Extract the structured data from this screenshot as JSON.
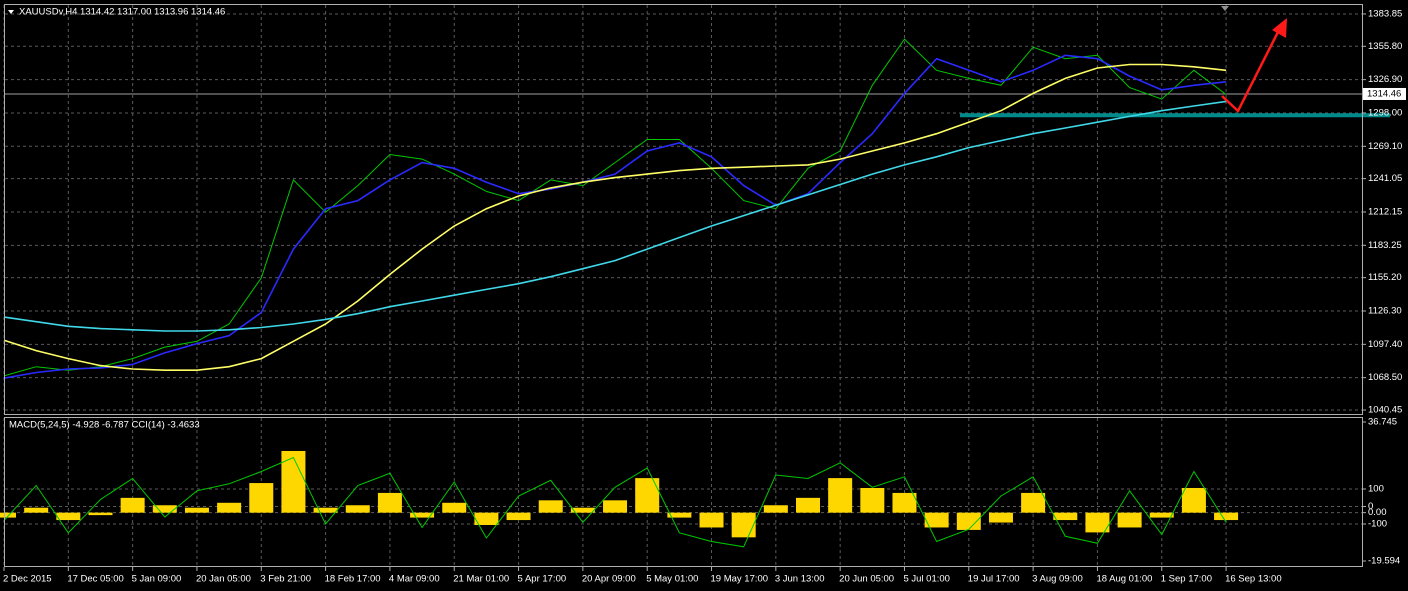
{
  "chart_data": [
    {
      "type": "line",
      "title": "XAUUSDv,H4  1314.42 1317.00 1313.96 1314.46",
      "categories": [
        "2 Dec 2015",
        null,
        "17 Dec 05:00",
        null,
        "5 Jan 09:00",
        null,
        "20 Jan 05:00",
        null,
        "3 Feb 21:00",
        null,
        "18 Feb 17:00",
        null,
        "4 Mar 09:00",
        null,
        "21 Mar 01:00",
        null,
        "5 Apr 17:00",
        null,
        "20 Apr 09:00",
        null,
        "5 May 01:00",
        null,
        "19 May 17:00",
        null,
        "3 Jun 13:00",
        null,
        "20 Jun 05:00",
        null,
        "5 Jul 01:00",
        null,
        "19 Jul 17:00",
        null,
        "3 Aug 09:00",
        null,
        "18 Aug 01:00",
        null,
        "1 Sep 17:00",
        null,
        "16 Sep 13:00"
      ],
      "series": [
        {
          "color": "#00c800",
          "values": [
            1070,
            1078,
            1075,
            1078,
            1085,
            1095,
            1100,
            1115,
            1155,
            1240,
            1212,
            1235,
            1262,
            1258,
            1245,
            1230,
            1222,
            1240,
            1235,
            1255,
            1275,
            1275,
            1250,
            1222,
            1215,
            1250,
            1265,
            1322,
            1362,
            1335,
            1328,
            1322,
            1355,
            1345,
            1348,
            1320,
            1310,
            1335,
            1314
          ]
        },
        {
          "color": "#2a2aff",
          "values": [
            1068,
            1073,
            1076,
            1077,
            1080,
            1090,
            1098,
            1105,
            1125,
            1180,
            1215,
            1222,
            1240,
            1255,
            1250,
            1238,
            1228,
            1232,
            1238,
            1245,
            1265,
            1272,
            1260,
            1235,
            1218,
            1228,
            1255,
            1280,
            1315,
            1345,
            1335,
            1325,
            1335,
            1348,
            1345,
            1330,
            1318,
            1322,
            1325
          ]
        },
        {
          "color": "#ffff66",
          "values": [
            1101,
            1092,
            1085,
            1079,
            1076,
            1075,
            1075,
            1078,
            1085,
            1100,
            1115,
            1135,
            1158,
            1180,
            1200,
            1215,
            1226,
            1233,
            1238,
            1242,
            1245,
            1248,
            1250,
            1251,
            1252,
            1253,
            1258,
            1265,
            1272,
            1280,
            1290,
            1300,
            1315,
            1328,
            1337,
            1340,
            1340,
            1338,
            1335
          ]
        },
        {
          "color": "#40d8e8",
          "values": [
            1121,
            1117,
            1113,
            1111,
            1110,
            1109,
            1109,
            1110,
            1112,
            1115,
            1119,
            1124,
            1130,
            1135,
            1140,
            1145,
            1150,
            1156,
            1163,
            1170,
            1180,
            1190,
            1200,
            1209,
            1218,
            1227,
            1236,
            1245,
            1253,
            1260,
            1268,
            1274,
            1280,
            1285,
            1290,
            1295,
            1300,
            1304,
            1308
          ]
        }
      ],
      "current_price": 1314.46,
      "support_level": 1296,
      "ylim": [
        1037,
        1391.6
      ],
      "yticks": [
        1383.85,
        {
          "value": 1355.8,
          "label": "1355.80"
        },
        {
          "value": 1326.9,
          "label": "1326.90"
        },
        {
          "value": 1298,
          "label": "1298.00"
        },
        {
          "value": 1269.1,
          "label": "1269.10"
        },
        1241.05,
        1212.15,
        1183.25,
        {
          "value": 1155.2,
          "label": "1155.20"
        },
        {
          "value": 1126.3,
          "label": "1126.30"
        },
        {
          "value": 1097.4,
          "label": "1097.40"
        },
        {
          "value": 1068.5,
          "label": "1068.50"
        },
        1040.45
      ],
      "grid": true
    },
    {
      "type": "bar",
      "title": "MACD(5,24,5) -4.928 -6.787 CCI(14) -3.4633",
      "series": [
        {
          "color": "#ffd700",
          "values": [
            -2,
            2,
            -3,
            -1,
            6,
            3,
            2,
            4,
            12,
            25,
            2,
            3,
            8,
            -2,
            4,
            -5,
            -3,
            5,
            2,
            5,
            14,
            -2,
            -6,
            -10,
            3,
            6,
            14,
            10,
            8,
            -6,
            -7,
            -4,
            8,
            -3,
            -8,
            -6,
            -2,
            10,
            -3
          ]
        },
        {
          "color": "#00c800",
          "axis": "y2",
          "values": [
            -80,
            120,
            -150,
            40,
            160,
            -60,
            90,
            130,
            200,
            280,
            -100,
            120,
            190,
            -120,
            140,
            -180,
            60,
            150,
            -90,
            110,
            220,
            -150,
            -200,
            -230,
            180,
            160,
            250,
            110,
            170,
            -200,
            -130,
            60,
            170,
            -170,
            -210,
            90,
            -160,
            200,
            -90
          ]
        }
      ],
      "ylim": [
        -19.594,
        36.745
      ],
      "yticks": [
        36.745,
        {
          "value": 0,
          "label": "0.00"
        },
        -19.594
      ],
      "y2lim": [
        -311.4,
        482.9
      ],
      "y2ticks": [
        100,
        0,
        -100
      ],
      "grid": true
    }
  ]
}
